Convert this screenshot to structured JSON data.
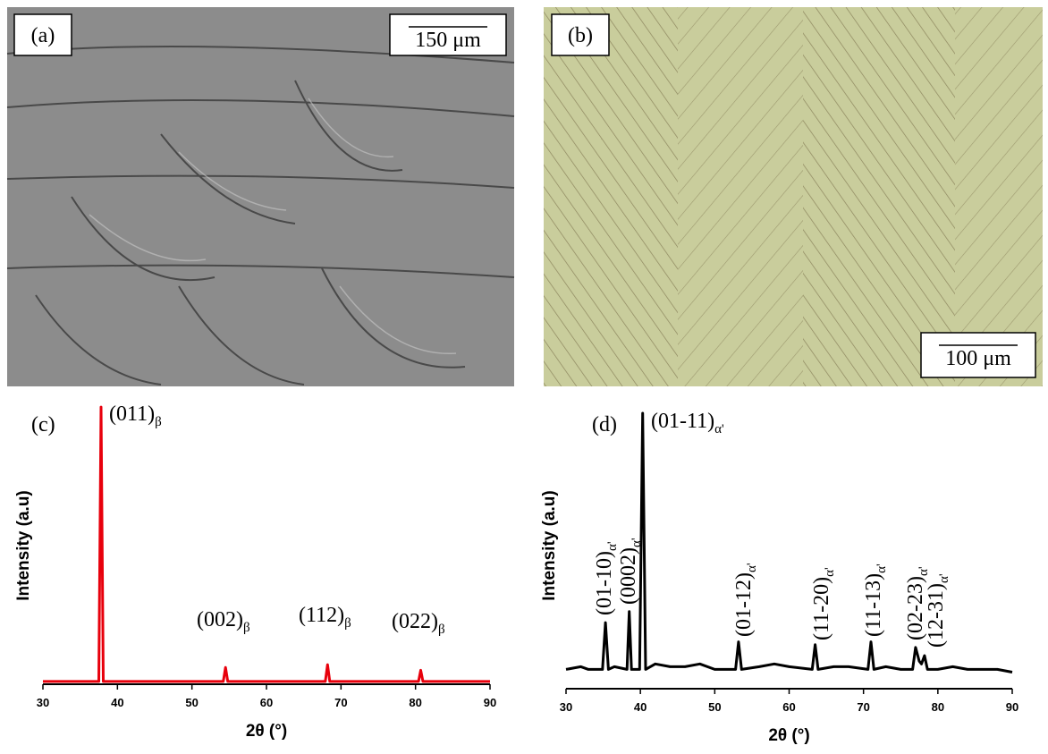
{
  "panels": [
    {
      "label": "(a)",
      "scale": "150 μm"
    },
    {
      "label": "(b)",
      "scale": "100 μm"
    }
  ],
  "chart_data": [
    {
      "type": "line",
      "panel": "(c)",
      "xlabel": "2θ (°)",
      "ylabel": "Intensity (a.u)",
      "xlim": [
        30,
        90
      ],
      "xticks": [
        30,
        40,
        50,
        60,
        70,
        80,
        90
      ],
      "ylim": [
        0,
        100
      ],
      "x": [
        30,
        37.5,
        37.8,
        38.1,
        54.2,
        54.5,
        54.8,
        67.9,
        68.2,
        68.5,
        80.4,
        80.7,
        81.0,
        90
      ],
      "series": [
        {
          "color": "#e8000c",
          "values": [
            1,
            1,
            99,
            1,
            1,
            6,
            1,
            1,
            7,
            1,
            1,
            5,
            1,
            1
          ]
        }
      ],
      "annotations": [
        {
          "text": "(011)",
          "sub": "β"
        },
        {
          "text": "(002)",
          "sub": "β"
        },
        {
          "text": "(112)",
          "sub": "β"
        },
        {
          "text": "(022)",
          "sub": "β"
        }
      ]
    },
    {
      "type": "line",
      "panel": "(d)",
      "xlabel": "2θ (°)",
      "ylabel": "Intensity (a.u)",
      "xlim": [
        30,
        90
      ],
      "xticks": [
        30,
        40,
        50,
        60,
        70,
        80,
        90
      ],
      "ylim": [
        0,
        100
      ],
      "x": [
        30,
        32,
        33,
        34.9,
        35.3,
        35.7,
        36.5,
        38.2,
        38.5,
        38.8,
        39.9,
        40.3,
        40.7,
        42,
        44,
        46,
        48,
        50,
        52.8,
        53.2,
        53.6,
        56,
        58,
        60,
        63.1,
        63.5,
        63.9,
        66,
        68,
        70.6,
        71,
        71.4,
        73,
        75,
        76.6,
        77,
        77.5,
        77.8,
        78.2,
        78.6,
        80,
        82,
        84,
        86,
        88,
        90
      ],
      "series": [
        {
          "color": "#000000",
          "values": [
            7,
            8,
            7,
            7,
            24,
            7,
            8,
            7,
            28,
            7,
            7,
            100,
            7,
            9,
            8,
            8,
            9,
            7,
            7,
            17,
            7,
            8,
            9,
            8,
            7,
            16,
            7,
            8,
            8,
            7,
            17,
            7,
            8,
            7,
            7,
            15,
            10,
            9,
            12,
            7,
            7,
            8,
            7,
            7,
            7,
            6
          ]
        }
      ],
      "annotations": [
        {
          "text": "(01-11)",
          "sub": "α'"
        },
        {
          "text": "(01-10)",
          "sub": "α'"
        },
        {
          "text": "(0002)",
          "sub": "α'"
        },
        {
          "text": "(01-12)",
          "sub": "α'"
        },
        {
          "text": "(11-20)",
          "sub": "α'"
        },
        {
          "text": "(11-13)",
          "sub": "α'"
        },
        {
          "text": "(02-23)",
          "sub": "α'"
        },
        {
          "text": "(12-31)",
          "sub": "α'"
        }
      ]
    }
  ]
}
